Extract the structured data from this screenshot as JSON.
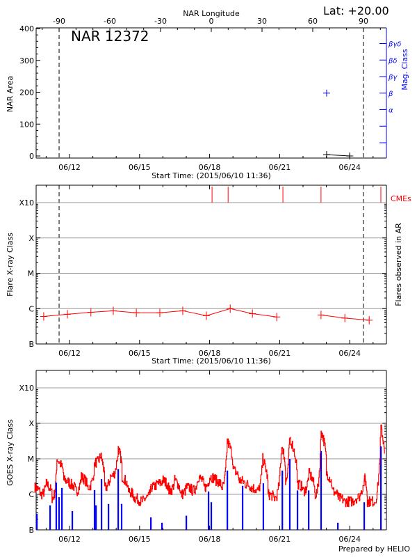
{
  "header": {
    "lat_label": "Lat: +20.00"
  },
  "footer": {
    "credit": "Prepared by HELIO"
  },
  "colors": {
    "axis": "#000000",
    "grid": "#999999",
    "flare": "#ff0000",
    "mag_class": "#0000ff",
    "goes_long": "#ff0000",
    "goes_short": "#0000ff",
    "cme": "#ff0000"
  },
  "chart_data": [
    {
      "type": "scatter",
      "title": "NAR 12372",
      "top_axis_label": "NAR Longitude",
      "longitude_ticks": [
        -90,
        -60,
        -30,
        0,
        30,
        60,
        90
      ],
      "limb_longitudes": [
        -90,
        90
      ],
      "ylabel": "NAR Area",
      "ylim": [
        0,
        400
      ],
      "yticks": [
        0,
        100,
        200,
        300,
        400
      ],
      "right_axis_label": "Mag. Class",
      "mag_classes": [
        "α",
        "β",
        "βγ",
        "βδ",
        "βγδ"
      ],
      "xlabel": "Start Time: (2015/06/10 11:36)",
      "date_ticks": [
        "06/12",
        "06/15",
        "06/18",
        "06/21",
        "06/24"
      ],
      "area_series": [
        {
          "t": "06/23 00:15",
          "area": 4
        },
        {
          "t": "06/24 00:00",
          "area": 0
        }
      ],
      "mag_class_series": [
        {
          "t": "06/23 00:15",
          "class": "β"
        }
      ]
    },
    {
      "type": "line",
      "ylabel": "Flare X-ray Class",
      "right_axis_label": "Flares observed in AR",
      "class_ticks": [
        "B",
        "C",
        "M",
        "X",
        "X10"
      ],
      "xlabel": "Start Time: (2015/06/10 11:36)",
      "date_ticks": [
        "06/12",
        "06/15",
        "06/18",
        "06/21",
        "06/24"
      ],
      "limb_longitudes": [
        -90,
        90
      ],
      "cme_label": "CMEs",
      "cmes": [
        "06/18 02:30",
        "06/18 19:00",
        "06/21 03:20",
        "06/22 18:30",
        "06/25 08:00"
      ],
      "flare_segments": [
        [
          {
            "t": "06/10 21:30",
            "class": "B6.0"
          },
          {
            "t": "06/11 21:50",
            "class": "B6.9"
          },
          {
            "t": "06/12 22:00",
            "class": "B7.9"
          },
          {
            "t": "06/13 21:00",
            "class": "B8.7"
          },
          {
            "t": "06/14 20:40",
            "class": "B7.6"
          },
          {
            "t": "06/15 20:50",
            "class": "B7.6"
          },
          {
            "t": "06/16 20:25",
            "class": "B8.7"
          },
          {
            "t": "06/17 20:40",
            "class": "B6.3"
          },
          {
            "t": "06/18 21:10",
            "class": "C1.0"
          },
          {
            "t": "06/19 20:00",
            "class": "B7.2"
          },
          {
            "t": "06/20 21:00",
            "class": "B5.8"
          }
        ],
        [
          {
            "t": "06/22 18:30",
            "class": "B6.6"
          },
          {
            "t": "06/23 19:00",
            "class": "B5.4"
          },
          {
            "t": "06/24 20:00",
            "class": "B4.7"
          }
        ]
      ]
    },
    {
      "type": "line",
      "ylabel": "GOES X-ray Class",
      "class_ticks": [
        "B",
        "C",
        "M",
        "X",
        "X10"
      ],
      "date_ticks": [
        "06/12",
        "06/15",
        "06/18",
        "06/21",
        "06/24"
      ],
      "series": [
        {
          "color": "#ff0000",
          "log_flux": [
            [
              "06/10 12:00",
              -5.8
            ],
            [
              "06/10 18:00",
              -6.0
            ],
            [
              "06/11 00:00",
              -5.7
            ],
            [
              "06/11 06:00",
              -6.1
            ],
            [
              "06/11 11:00",
              -5.0
            ],
            [
              "06/11 18:00",
              -5.6
            ],
            [
              "06/12 00:00",
              -5.7
            ],
            [
              "06/12 06:00",
              -5.9
            ],
            [
              "06/12 12:00",
              -5.5
            ],
            [
              "06/12 18:00",
              -5.8
            ],
            [
              "06/13 02:00",
              -5.1
            ],
            [
              "06/13 08:00",
              -4.9
            ],
            [
              "06/13 12:00",
              -5.8
            ],
            [
              "06/13 18:00",
              -5.5
            ],
            [
              "06/14 02:00",
              -4.7
            ],
            [
              "06/14 06:00",
              -5.5
            ],
            [
              "06/14 12:00",
              -5.9
            ],
            [
              "06/14 18:00",
              -6.1
            ],
            [
              "06/15 00:00",
              -6.2
            ],
            [
              "06/15 06:00",
              -6.1
            ],
            [
              "06/15 12:00",
              -5.8
            ],
            [
              "06/15 18:00",
              -5.7
            ],
            [
              "06/16 00:00",
              -5.6
            ],
            [
              "06/16 06:00",
              -5.9
            ],
            [
              "06/16 12:00",
              -5.6
            ],
            [
              "06/16 18:00",
              -6.0
            ],
            [
              "06/17 00:00",
              -5.8
            ],
            [
              "06/17 06:00",
              -5.9
            ],
            [
              "06/17 12:00",
              -5.5
            ],
            [
              "06/17 18:00",
              -5.8
            ],
            [
              "06/18 00:00",
              -5.5
            ],
            [
              "06/18 06:00",
              -5.6
            ],
            [
              "06/18 12:00",
              -5.8
            ],
            [
              "06/18 18:00",
              -4.5
            ],
            [
              "06/19 00:00",
              -5.3
            ],
            [
              "06/19 06:00",
              -5.6
            ],
            [
              "06/19 12:00",
              -5.7
            ],
            [
              "06/19 18:00",
              -5.8
            ],
            [
              "06/20 00:00",
              -5.9
            ],
            [
              "06/20 06:30",
              -5.0
            ],
            [
              "06/20 12:00",
              -6.0
            ],
            [
              "06/20 18:00",
              -6.1
            ],
            [
              "06/21 02:00",
              -4.6
            ],
            [
              "06/21 06:00",
              -5.6
            ],
            [
              "06/21 10:00",
              -4.4
            ],
            [
              "06/21 18:00",
              -5.7
            ],
            [
              "06/22 00:00",
              -5.9
            ],
            [
              "06/22 06:00",
              -5.4
            ],
            [
              "06/22 12:00",
              -6.0
            ],
            [
              "06/22 18:30",
              -4.2
            ],
            [
              "06/23 00:00",
              -5.4
            ],
            [
              "06/23 06:00",
              -5.9
            ],
            [
              "06/23 12:00",
              -6.1
            ],
            [
              "06/23 18:00",
              -6.2
            ],
            [
              "06/24 00:00",
              -6.2
            ],
            [
              "06/24 06:00",
              -6.1
            ],
            [
              "06/24 14:50",
              -5.5
            ],
            [
              "06/24 18:00",
              -6.2
            ],
            [
              "06/25 00:00",
              -6.2
            ],
            [
              "06/25 08:00",
              -4.1
            ],
            [
              "06/25 12:00",
              -5.4
            ]
          ]
        },
        {
          "color": "#0000ff",
          "log_flux": [
            [
              "06/10 14:25",
              -6.55
            ],
            [
              "06/11 04:00",
              -6.31
            ],
            [
              "06/11 10:20",
              -5.67
            ],
            [
              "06/11 13:10",
              -6.08
            ],
            [
              "06/11 16:10",
              -5.82
            ],
            [
              "06/12 02:50",
              -6.47
            ],
            [
              "06/13 01:40",
              -5.88
            ],
            [
              "06/13 03:10",
              -6.31
            ],
            [
              "06/13 08:50",
              -5.57
            ],
            [
              "06/13 16:00",
              -6.27
            ],
            [
              "06/14 02:00",
              -5.29
            ],
            [
              "06/14 05:30",
              -6.27
            ],
            [
              "06/15 11:35",
              -6.65
            ],
            [
              "06/15 23:00",
              -6.8
            ],
            [
              "06/17 00:00",
              -6.6
            ],
            [
              "06/17 22:50",
              -5.92
            ],
            [
              "06/18 01:40",
              -6.22
            ],
            [
              "06/18 18:10",
              -5.33
            ],
            [
              "06/19 09:50",
              -5.76
            ],
            [
              "06/20 07:10",
              -5.69
            ],
            [
              "06/21 02:40",
              -5.33
            ],
            [
              "06/21 10:20",
              -5.0
            ],
            [
              "06/21 18:15",
              -5.89
            ],
            [
              "06/22 05:45",
              -5.89
            ],
            [
              "06/22 18:30",
              -4.78
            ],
            [
              "06/23 11:45",
              -6.8
            ],
            [
              "06/24 14:50",
              -6.22
            ],
            [
              "06/25 08:00",
              -4.65
            ]
          ]
        }
      ]
    }
  ]
}
